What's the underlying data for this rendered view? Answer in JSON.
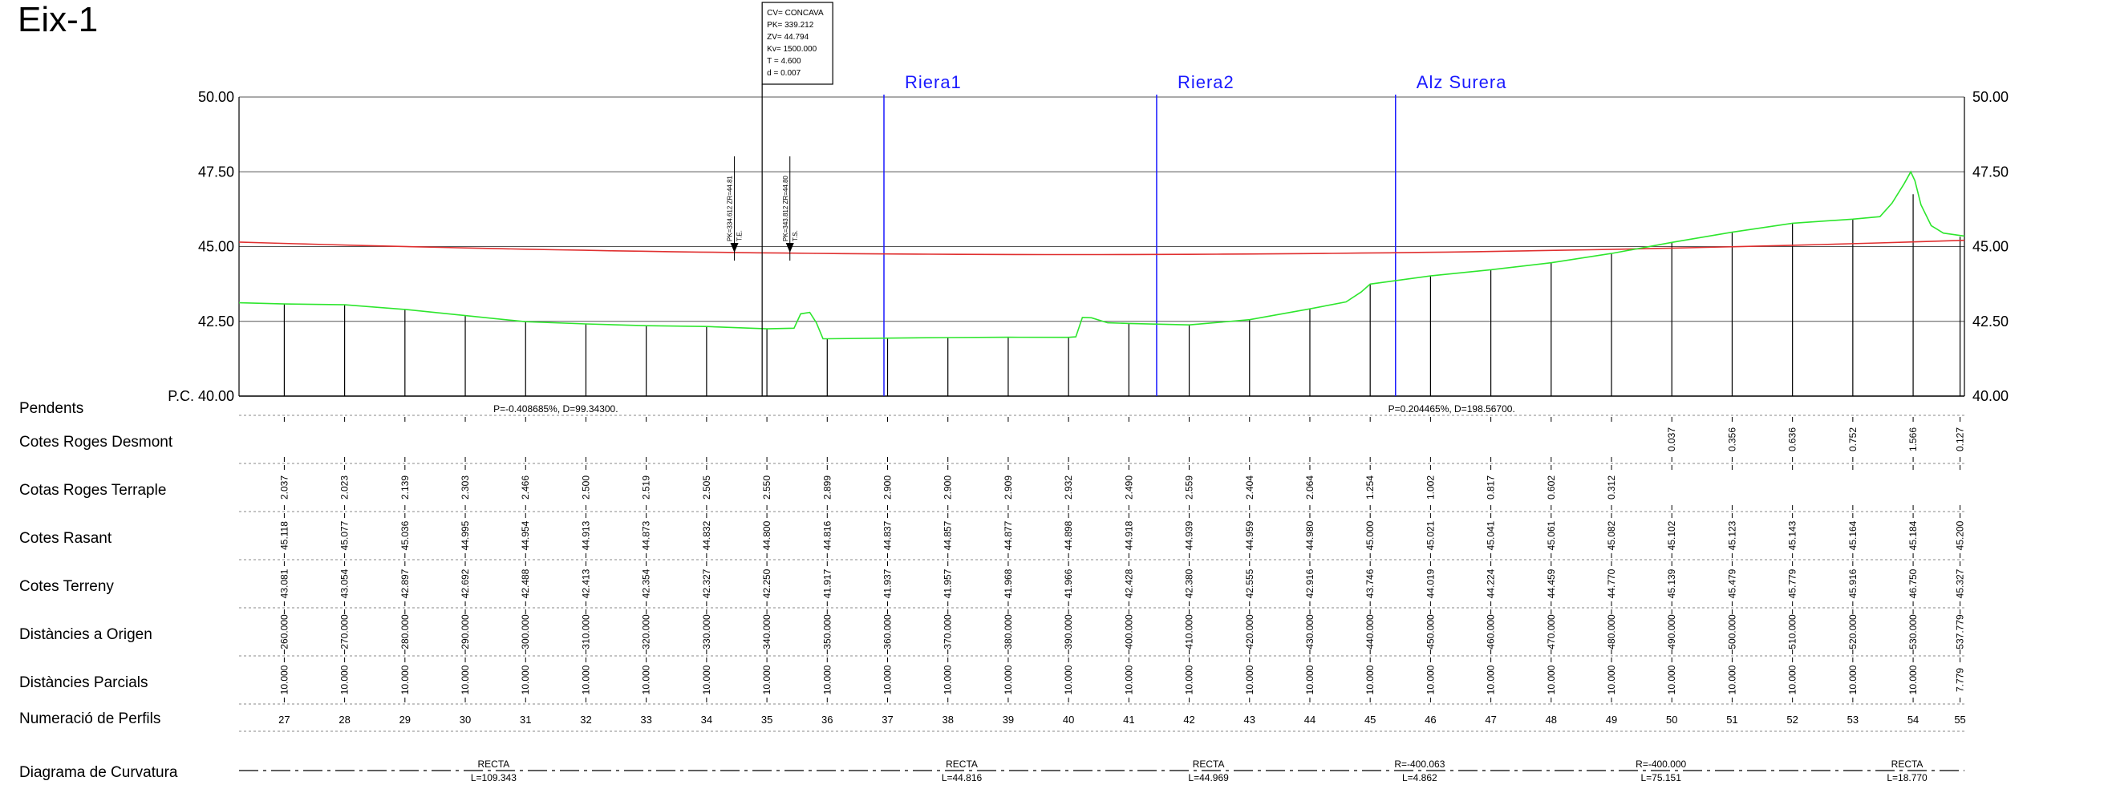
{
  "title": "Eix-1",
  "colors": {
    "terrain": "#2ee62e",
    "rasant": "#e03030",
    "markers": "#1a1aff",
    "grid": "#000000"
  },
  "elev_axis": {
    "ylim": [
      40,
      50
    ],
    "ticks_left": [
      "P.C.  40.00",
      "42.50",
      "45.00",
      "47.50",
      "50.00"
    ],
    "ticks_right": [
      "40.00",
      "42.50",
      "45.00",
      "47.50",
      "50.00"
    ],
    "tick_values": [
      40,
      42.5,
      45,
      47.5,
      50
    ]
  },
  "x_range": [
    252.5,
    538.5
  ],
  "vertical_curve": {
    "lines": [
      "CV= CONCAVA",
      "PK= 339.212",
      "ZV= 44.794",
      "Kv= 1500.000",
      "T = 4.600",
      "d = 0.007"
    ],
    "pk": 339.212
  },
  "tangent_marks": [
    {
      "pk": 334.612,
      "text": "PK=334.612 ZR=44.81",
      "sub": "T.E."
    },
    {
      "pk": 343.812,
      "text": "PK=343.812 ZR=44.80",
      "sub": "T.S."
    }
  ],
  "markers": [
    {
      "name": "Riera1",
      "pk": 359.4
    },
    {
      "name": "Riera2",
      "pk": 404.6
    },
    {
      "name": "Alz  Surera",
      "pk": 444.2
    }
  ],
  "row_labels": {
    "pendents": "Pendents",
    "desmont": "Cotes Roges Desmont",
    "terraple": "Cotas Roges Terraple",
    "rasant": "Cotes Rasant",
    "terreny": "Cotes Terreny",
    "origen": "Distàncies a Origen",
    "parcials": "Distàncies Parcials",
    "perfils": "Numeració de Perfils",
    "curvatura": "Diagrama de Curvatura"
  },
  "pendents": [
    {
      "text": "P=-0.408685%,  D=99.34300.",
      "pk": 305
    },
    {
      "text": "P=0.204465%,  D=198.56700.",
      "pk": 453.5
    }
  ],
  "chart_data": {
    "type": "line",
    "x": [
      260,
      270,
      280,
      290,
      300,
      310,
      320,
      330,
      340,
      350,
      360,
      370,
      380,
      390,
      400,
      410,
      420,
      430,
      440,
      450,
      460,
      470,
      480,
      490,
      500,
      510,
      520,
      530,
      537.779
    ],
    "series": [
      {
        "name": "Cotes Terreny",
        "values": [
          43.081,
          43.054,
          42.897,
          42.692,
          42.488,
          42.413,
          42.354,
          42.327,
          42.25,
          41.917,
          41.937,
          41.957,
          41.968,
          41.966,
          42.428,
          42.38,
          42.555,
          42.916,
          43.746,
          44.019,
          44.224,
          44.459,
          44.77,
          45.139,
          45.479,
          45.779,
          45.916,
          46.75,
          45.327
        ]
      },
      {
        "name": "Cotes Rasant",
        "values": [
          45.118,
          45.077,
          45.036,
          44.995,
          44.954,
          44.913,
          44.873,
          44.832,
          44.8,
          44.816,
          44.837,
          44.857,
          44.877,
          44.898,
          44.918,
          44.939,
          44.959,
          44.98,
          45.0,
          45.021,
          45.041,
          45.061,
          45.082,
          45.102,
          45.123,
          45.143,
          45.164,
          45.184,
          45.2
        ]
      }
    ],
    "terrain_detail": [
      [
        252.5,
        43.12
      ],
      [
        260,
        43.081
      ],
      [
        270,
        43.054
      ],
      [
        280,
        42.897
      ],
      [
        290,
        42.692
      ],
      [
        300,
        42.488
      ],
      [
        310,
        42.413
      ],
      [
        320,
        42.354
      ],
      [
        330,
        42.327
      ],
      [
        340,
        42.25
      ],
      [
        344.5,
        42.27
      ],
      [
        345.6,
        42.75
      ],
      [
        347.1,
        42.8
      ],
      [
        348.2,
        42.45
      ],
      [
        349.3,
        41.92
      ],
      [
        350,
        41.917
      ],
      [
        360,
        41.937
      ],
      [
        370,
        41.957
      ],
      [
        380,
        41.968
      ],
      [
        390,
        41.966
      ],
      [
        391.2,
        41.98
      ],
      [
        392.3,
        42.63
      ],
      [
        393.8,
        42.62
      ],
      [
        396.5,
        42.45
      ],
      [
        400,
        42.428
      ],
      [
        410,
        42.38
      ],
      [
        420,
        42.555
      ],
      [
        430,
        42.916
      ],
      [
        436,
        43.15
      ],
      [
        438.5,
        43.48
      ],
      [
        440,
        43.746
      ],
      [
        450,
        44.019
      ],
      [
        460,
        44.224
      ],
      [
        470,
        44.459
      ],
      [
        480,
        44.77
      ],
      [
        490,
        45.139
      ],
      [
        500,
        45.479
      ],
      [
        510,
        45.779
      ],
      [
        520,
        45.916
      ],
      [
        524.5,
        46.0
      ],
      [
        526.5,
        46.45
      ],
      [
        528.5,
        47.1
      ],
      [
        529.6,
        47.5
      ],
      [
        530.3,
        47.2
      ],
      [
        531.3,
        46.4
      ],
      [
        533,
        45.7
      ],
      [
        535,
        45.45
      ],
      [
        538.5,
        45.35
      ]
    ],
    "rasant_detail": [
      [
        252.5,
        45.15
      ],
      [
        339.212,
        44.79
      ],
      [
        538.5,
        45.21
      ]
    ]
  },
  "table": {
    "desmont": [
      "",
      "",
      "",
      "",
      "",
      "",
      "",
      "",
      "",
      "",
      "",
      "",
      "",
      "",
      "",
      "",
      "",
      "",
      "",
      "",
      "",
      "",
      "",
      "0.037",
      "0.356",
      "0.636",
      "0.752",
      "1.566",
      "0.127"
    ],
    "terraple": [
      "2.037",
      "2.023",
      "2.139",
      "2.303",
      "2.466",
      "2.500",
      "2.519",
      "2.505",
      "2.550",
      "2.899",
      "2.900",
      "2.900",
      "2.909",
      "2.932",
      "2.490",
      "2.559",
      "2.404",
      "2.064",
      "1.254",
      "1.002",
      "0.817",
      "0.602",
      "0.312",
      "",
      "",
      "",
      "",
      "",
      ""
    ],
    "rasant": [
      "45.118",
      "45.077",
      "45.036",
      "44.995",
      "44.954",
      "44.913",
      "44.873",
      "44.832",
      "44.800",
      "44.816",
      "44.837",
      "44.857",
      "44.877",
      "44.898",
      "44.918",
      "44.939",
      "44.959",
      "44.980",
      "45.000",
      "45.021",
      "45.041",
      "45.061",
      "45.082",
      "45.102",
      "45.123",
      "45.143",
      "45.164",
      "45.184",
      "45.200"
    ],
    "terreny": [
      "43.081",
      "43.054",
      "42.897",
      "42.692",
      "42.488",
      "42.413",
      "42.354",
      "42.327",
      "42.250",
      "41.917",
      "41.937",
      "41.957",
      "41.968",
      "41.966",
      "42.428",
      "42.380",
      "42.555",
      "42.916",
      "43.746",
      "44.019",
      "44.224",
      "44.459",
      "44.770",
      "45.139",
      "45.479",
      "45.779",
      "45.916",
      "46.750",
      "45.327"
    ],
    "origen": [
      "260.000",
      "270.000",
      "280.000",
      "290.000",
      "300.000",
      "310.000",
      "320.000",
      "330.000",
      "340.000",
      "350.000",
      "360.000",
      "370.000",
      "380.000",
      "390.000",
      "400.000",
      "410.000",
      "420.000",
      "430.000",
      "440.000",
      "450.000",
      "460.000",
      "470.000",
      "480.000",
      "490.000",
      "500.000",
      "510.000",
      "520.000",
      "530.000",
      "537.779"
    ],
    "parcials": [
      "10.000",
      "10.000",
      "10.000",
      "10.000",
      "10.000",
      "10.000",
      "10.000",
      "10.000",
      "10.000",
      "10.000",
      "10.000",
      "10.000",
      "10.000",
      "10.000",
      "10.000",
      "10.000",
      "10.000",
      "10.000",
      "10.000",
      "10.000",
      "10.000",
      "10.000",
      "10.000",
      "10.000",
      "10.000",
      "10.000",
      "10.000",
      "10.000",
      "7.779"
    ],
    "perfils": [
      "27",
      "28",
      "29",
      "30",
      "31",
      "32",
      "33",
      "34",
      "35",
      "36",
      "37",
      "38",
      "39",
      "40",
      "41",
      "42",
      "43",
      "44",
      "45",
      "46",
      "47",
      "48",
      "49",
      "50",
      "51",
      "52",
      "53",
      "54",
      "55"
    ]
  },
  "curvatura": [
    {
      "line1": "RECTA",
      "line2": "L=109.343",
      "pk": 294.7
    },
    {
      "line1": "RECTA",
      "line2": "L=44.816",
      "pk": 372.3
    },
    {
      "line1": "RECTA",
      "line2": "L=44.969",
      "pk": 413.2
    },
    {
      "line1": "R=-400.063",
      "line2": "L=4.862",
      "pk": 448.2
    },
    {
      "line1": "R=-400.000",
      "line2": "L=75.151",
      "pk": 488.2
    },
    {
      "line1": "RECTA",
      "line2": "L=18.770",
      "pk": 529.0
    }
  ]
}
